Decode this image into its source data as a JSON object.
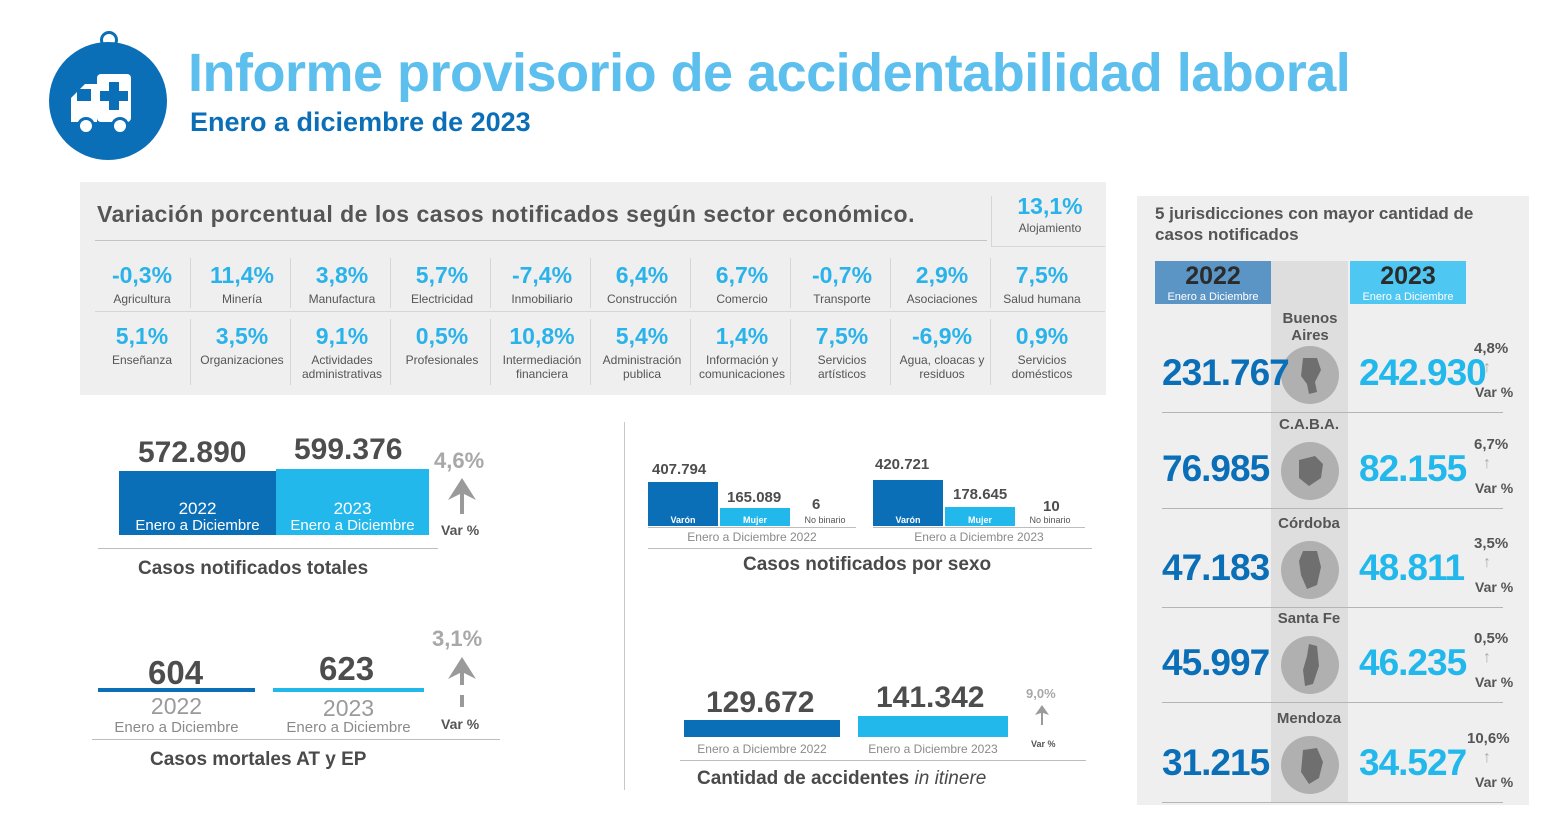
{
  "header": {
    "title": "Informe provisorio de accidentabilidad laboral",
    "subtitle": "Enero a diciembre de 2023",
    "icon": "ambulance-icon"
  },
  "sectors": {
    "heading": "Variación porcentual de los casos notificados según sector económico.",
    "items": [
      {
        "value": "-0,3%",
        "label": "Agricultura"
      },
      {
        "value": "11,4%",
        "label": "Minería"
      },
      {
        "value": "3,8%",
        "label": "Manufactura"
      },
      {
        "value": "5,7%",
        "label": "Electricidad"
      },
      {
        "value": "-7,4%",
        "label": "Inmobiliario"
      },
      {
        "value": "6,4%",
        "label": "Construcción"
      },
      {
        "value": "6,7%",
        "label": "Comercio"
      },
      {
        "value": "-0,7%",
        "label": "Transporte"
      },
      {
        "value": "2,9%",
        "label": "Asociaciones"
      },
      {
        "value": "7,5%",
        "label": "Salud humana"
      },
      {
        "value": "5,1%",
        "label": "Enseñanza"
      },
      {
        "value": "3,5%",
        "label": "Organizaciones"
      },
      {
        "value": "9,1%",
        "label": "Actividades administrativas"
      },
      {
        "value": "0,5%",
        "label": "Profesionales"
      },
      {
        "value": "10,8%",
        "label": "Intermediación financiera"
      },
      {
        "value": "5,4%",
        "label": "Administración publica"
      },
      {
        "value": "1,4%",
        "label": "Información y comunicaciones"
      },
      {
        "value": "7,5%",
        "label": "Servicios artísticos"
      },
      {
        "value": "-6,9%",
        "label": "Agua, cloacas y residuos"
      },
      {
        "value": "0,9%",
        "label": "Servicios domésticos"
      }
    ],
    "extra": {
      "value": "13,1%",
      "label": "Alojamiento"
    }
  },
  "totals": {
    "v2022": "572.890",
    "v2023": "599.376",
    "year2022": "2022",
    "year2023": "2023",
    "period": "Enero a Diciembre",
    "pct": "4,6%",
    "var": "Var %",
    "caption": "Casos notificados totales"
  },
  "mortales": {
    "v2022": "604",
    "v2023": "623",
    "year2022": "2022",
    "year2023": "2023",
    "period": "Enero a Diciembre",
    "pct": "3,1%",
    "var": "Var %",
    "caption": "Casos mortales AT y EP"
  },
  "sexo": {
    "g2022": {
      "varon": "407.794",
      "mujer": "165.089",
      "nb": "6",
      "period": "Enero a Diciembre 2022"
    },
    "g2023": {
      "varon": "420.721",
      "mujer": "178.645",
      "nb": "10",
      "period": "Enero a Diciembre 2023"
    },
    "labels": {
      "varon": "Varón",
      "mujer": "Mujer",
      "nb": "No binario"
    },
    "caption": "Casos notificados por sexo"
  },
  "itinere": {
    "v2022": "129.672",
    "v2023": "141.342",
    "period2022": "Enero a Diciembre  2022",
    "period2023": "Enero a Diciembre  2023",
    "pct": "9,0%",
    "var": "Var %",
    "caption": "Cantidad de accidentes ",
    "caption_italic": "in itinere"
  },
  "jurisdicciones": {
    "title": "5 jurisdicciones con mayor cantidad de casos notificados",
    "year2022": "2022",
    "year2023": "2023",
    "period": "Enero a Diciembre",
    "var": "Var %",
    "rows": [
      {
        "name": "Buenos Aires",
        "v2022": "231.767",
        "v2023": "242.930",
        "pct": "4,8%"
      },
      {
        "name": "C.A.B.A.",
        "v2022": "76.985",
        "v2023": "82.155",
        "pct": "6,7%"
      },
      {
        "name": "Córdoba",
        "v2022": "47.183",
        "v2023": "48.811",
        "pct": "3,5%"
      },
      {
        "name": "Santa Fe",
        "v2022": "45.997",
        "v2023": "46.235",
        "pct": "0,5%"
      },
      {
        "name": "Mendoza",
        "v2022": "31.215",
        "v2023": "34.527",
        "pct": "10,6%"
      }
    ]
  },
  "colors": {
    "dark_blue": "#0b6fb8",
    "light_blue": "#22b8ec",
    "title_blue": "#5cbfee"
  }
}
